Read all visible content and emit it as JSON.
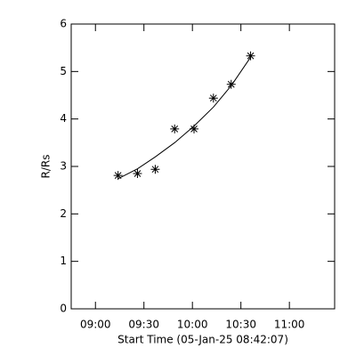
{
  "chart_data": {
    "type": "scatter",
    "xlabel": "Start Time (05-Jan-25 08:42:07)",
    "ylabel": "R/Rs",
    "xlim": [
      525,
      688
    ],
    "ylim": [
      0,
      6
    ],
    "xticks": [
      {
        "value": 540,
        "label": "09:00"
      },
      {
        "value": 570,
        "label": "09:30"
      },
      {
        "value": 600,
        "label": "10:00"
      },
      {
        "value": 630,
        "label": "10:30"
      },
      {
        "value": 660,
        "label": "11:00"
      }
    ],
    "yticks": [
      0,
      1,
      2,
      3,
      4,
      5,
      6
    ],
    "color": "#000000",
    "series": [
      {
        "kind": "points",
        "x": [
          554,
          566,
          577,
          589,
          601,
          613,
          624,
          636
        ],
        "values": [
          2.81,
          2.85,
          2.94,
          3.79,
          3.79,
          4.44,
          4.73,
          5.33
        ]
      },
      {
        "kind": "fit",
        "x": [
          554,
          566,
          577,
          589,
          601,
          613,
          624,
          636
        ],
        "values": [
          2.74,
          2.95,
          3.2,
          3.5,
          3.85,
          4.25,
          4.7,
          5.3
        ]
      }
    ]
  }
}
